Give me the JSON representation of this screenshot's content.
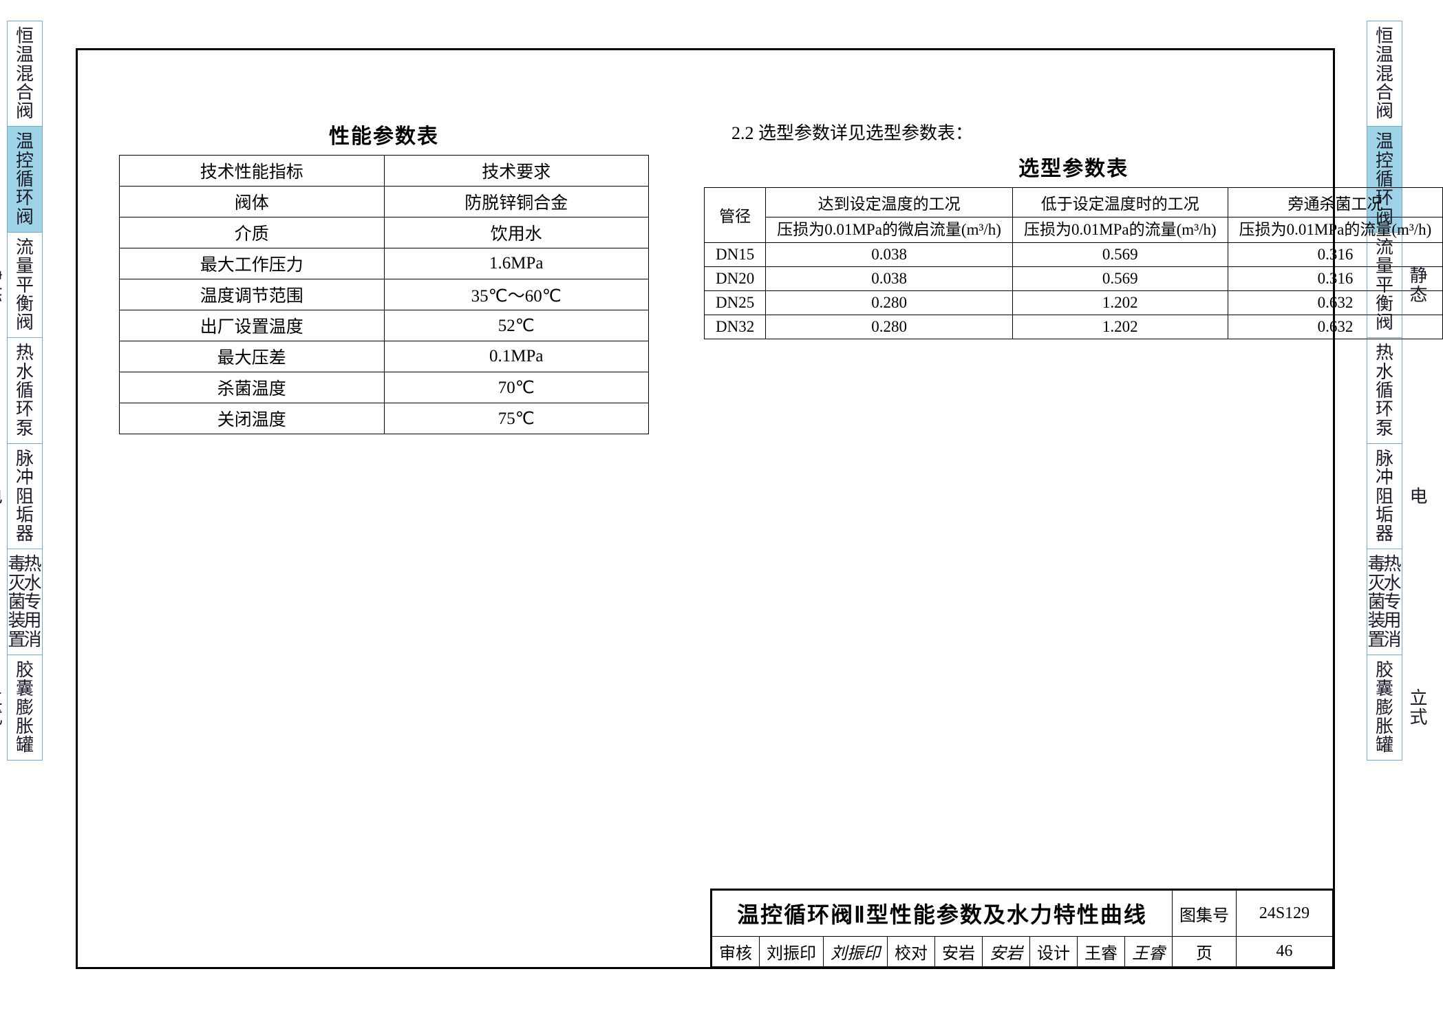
{
  "colors": {
    "tab_border": "#7aa8c8",
    "tab_active_bg": "#9ed2e6",
    "frame_border": "#000000",
    "text": "#1a1a2a",
    "table_border": "#000000",
    "page_bg": "#ffffff"
  },
  "side_tabs": [
    {
      "type": "single",
      "active": false,
      "cols": [
        [
          "恒",
          "温",
          "混",
          "合",
          "阀"
        ]
      ]
    },
    {
      "type": "single",
      "active": true,
      "cols": [
        [
          "温",
          "控",
          "循",
          "环",
          "阀"
        ]
      ]
    },
    {
      "type": "single",
      "active": false,
      "cols": [
        [
          "流",
          "量",
          "平",
          "衡",
          "阀"
        ]
      ],
      "side_label": "静态"
    },
    {
      "type": "single",
      "active": false,
      "cols": [
        [
          "热",
          "水",
          "循",
          "环",
          "泵"
        ]
      ]
    },
    {
      "type": "single",
      "active": false,
      "cols": [
        [
          "脉",
          "冲",
          "阻",
          "垢",
          "器"
        ]
      ],
      "side_label": "电"
    },
    {
      "type": "double",
      "active": false,
      "cols": [
        [
          "毒",
          "灭",
          "菌",
          "装",
          "置"
        ],
        [
          "热",
          "水",
          "专",
          "用",
          "消"
        ]
      ]
    },
    {
      "type": "single",
      "active": false,
      "cols": [
        [
          "胶",
          "囊",
          "膨",
          "胀",
          "罐"
        ]
      ],
      "side_label": "立式"
    }
  ],
  "performance_table": {
    "title": "性能参数表",
    "headers": [
      "技术性能指标",
      "技术要求"
    ],
    "rows": [
      [
        "阀体",
        "防脱锌铜合金"
      ],
      [
        "介质",
        "饮用水"
      ],
      [
        "最大工作压力",
        "1.6MPa"
      ],
      [
        "温度调节范围",
        "35℃～60℃"
      ],
      [
        "出厂设置温度",
        "52℃"
      ],
      [
        "最大压差",
        "0.1MPa"
      ],
      [
        "杀菌温度",
        "70℃"
      ],
      [
        "关闭温度",
        "75℃"
      ]
    ]
  },
  "selection_section_note": "2.2  选型参数详见选型参数表：",
  "selection_table": {
    "title": "选型参数表",
    "col1_header": "管径",
    "group_headers": [
      "达到设定温度的工况",
      "低于设定温度时的工况",
      "旁通杀菌工况"
    ],
    "sub_headers": [
      "压损为0.01MPa的微启流量(m³/h)",
      "压损为0.01MPa的流量(m³/h)",
      "压损为0.01MPa的流量(m³/h)"
    ],
    "rows": [
      [
        "DN15",
        "0.038",
        "0.569",
        "0.316"
      ],
      [
        "DN20",
        "0.038",
        "0.569",
        "0.316"
      ],
      [
        "DN25",
        "0.280",
        "1.202",
        "0.632"
      ],
      [
        "DN32",
        "0.280",
        "1.202",
        "0.632"
      ]
    ]
  },
  "title_block": {
    "main_title": "温控循环阀Ⅱ型性能参数及水力特性曲线",
    "atlas_label": "图集号",
    "atlas_no": "24S129",
    "review_label": "审核",
    "reviewer": "刘振印",
    "reviewer_sig": "刘振印",
    "proof_label": "校对",
    "proofer": "安岩",
    "proofer_sig": "安岩",
    "design_label": "设计",
    "designer": "王睿",
    "designer_sig": "王睿",
    "page_label": "页",
    "page_no": "46"
  }
}
